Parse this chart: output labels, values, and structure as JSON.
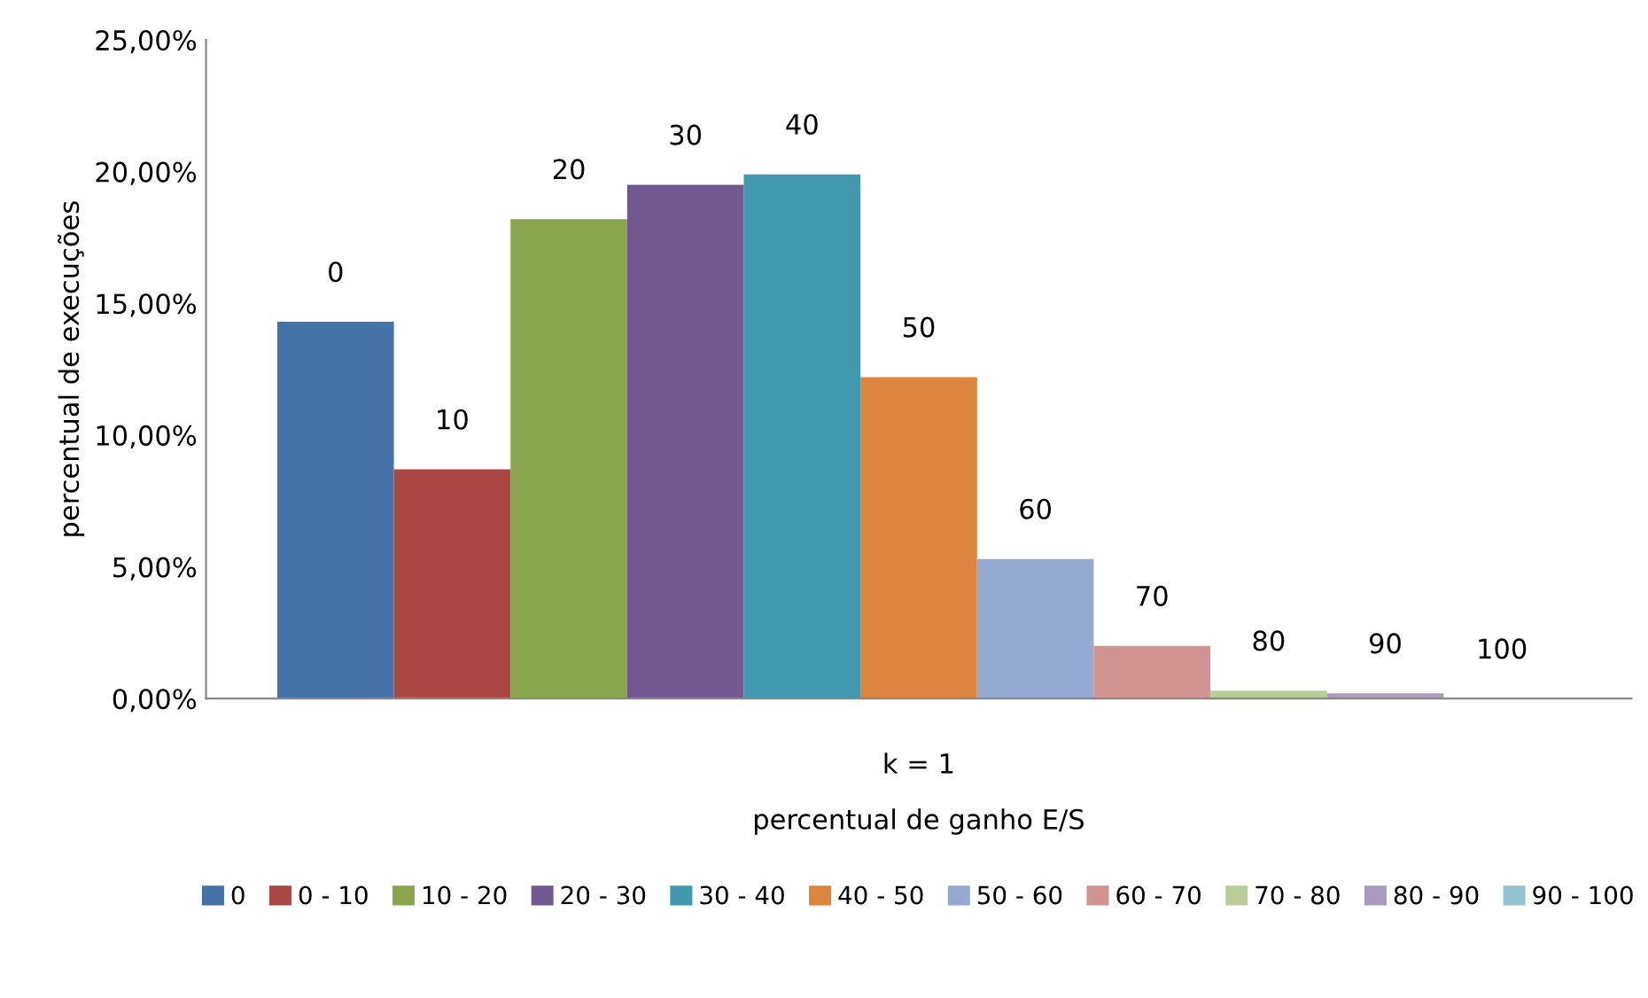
{
  "chart_data": {
    "type": "bar",
    "xlabel": "percentual de ganho E/S",
    "ylabel": "percentual de execuções",
    "categories": [
      "k = 1"
    ],
    "series": [
      {
        "name": "0",
        "color": "#4572a7",
        "values": [
          14.3
        ]
      },
      {
        "name": "0 - 10",
        "color": "#aa4643",
        "values": [
          8.7
        ]
      },
      {
        "name": "10 - 20",
        "color": "#89a54e",
        "values": [
          18.2
        ]
      },
      {
        "name": "20 - 30",
        "color": "#71588f",
        "values": [
          19.5
        ]
      },
      {
        "name": "30 - 40",
        "color": "#4198af",
        "values": [
          19.9
        ]
      },
      {
        "name": "40 - 50",
        "color": "#db843d",
        "values": [
          12.2
        ]
      },
      {
        "name": "50 - 60",
        "color": "#93a9cf",
        "values": [
          5.3
        ]
      },
      {
        "name": "60 - 70",
        "color": "#d19392",
        "values": [
          2.0
        ]
      },
      {
        "name": "70 - 80",
        "color": "#b9cd96",
        "values": [
          0.3
        ]
      },
      {
        "name": "80 - 90",
        "color": "#a99bbd",
        "values": [
          0.2
        ]
      },
      {
        "name": "90 - 100",
        "color": "#92c3d3",
        "values": [
          0.0
        ]
      }
    ],
    "annotations": [
      "0",
      "10",
      "20",
      "30",
      "40",
      "50",
      "60",
      "70",
      "80",
      "90",
      "100"
    ],
    "ylim": [
      0,
      25
    ],
    "yticks": [
      {
        "value": 0,
        "label": "0,00%"
      },
      {
        "value": 5,
        "label": "5,00%"
      },
      {
        "value": 10,
        "label": "10,00%"
      },
      {
        "value": 15,
        "label": "15,00%"
      },
      {
        "value": 20,
        "label": "20,00%"
      },
      {
        "value": 25,
        "label": "25,00%"
      }
    ],
    "grid": false,
    "legend": "bottom"
  }
}
